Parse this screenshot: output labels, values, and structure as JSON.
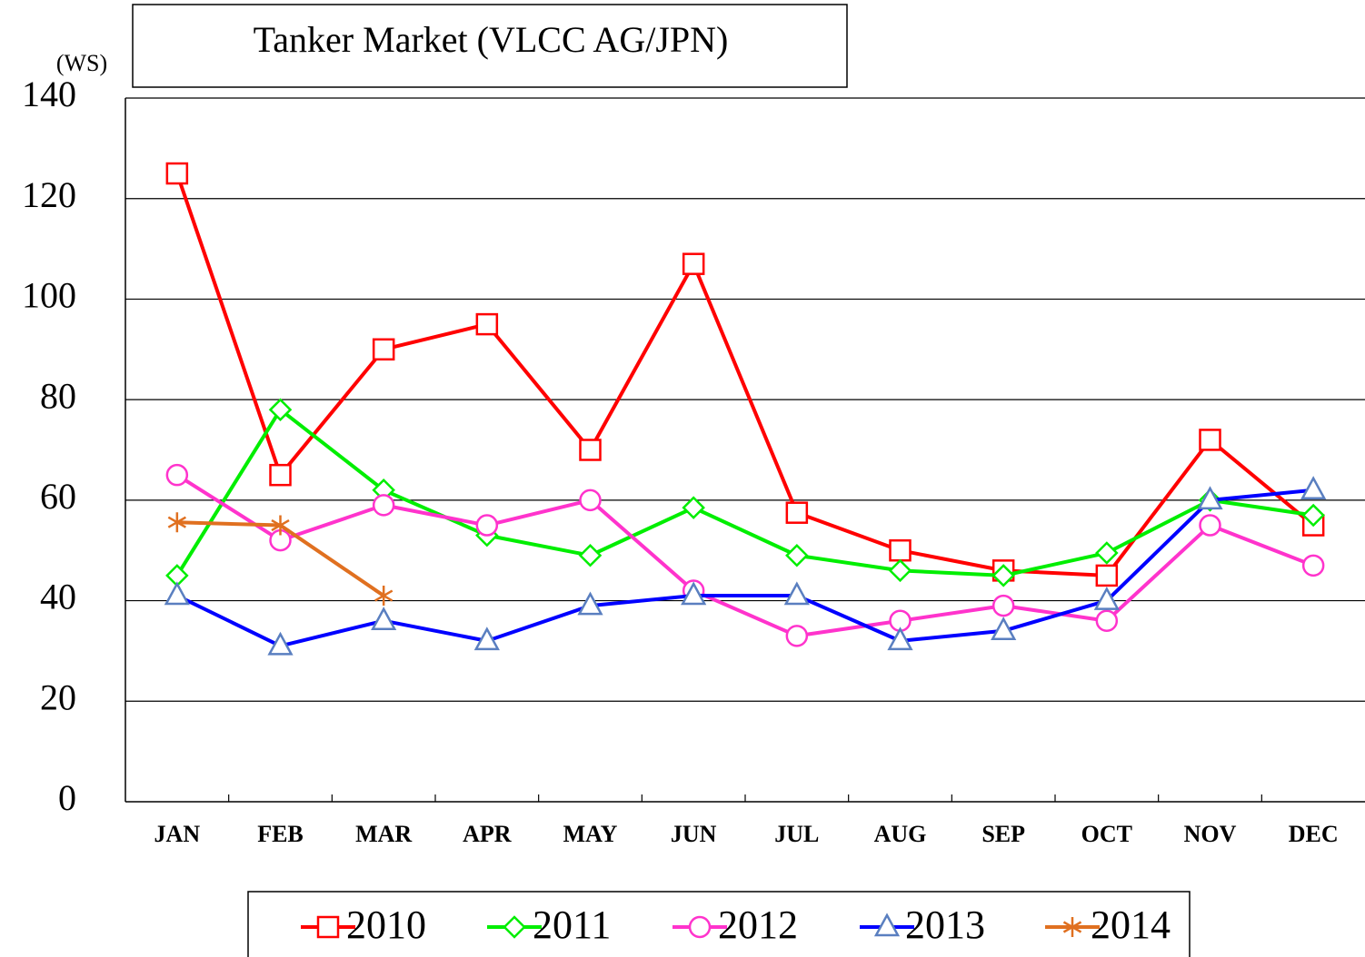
{
  "chart_data": {
    "type": "line",
    "title": "Tanker Market (VLCC AG/JPN)",
    "y_label": "(WS)",
    "categories": [
      "JAN",
      "FEB",
      "MAR",
      "APR",
      "MAY",
      "JUN",
      "JUL",
      "AUG",
      "SEP",
      "OCT",
      "NOV",
      "DEC"
    ],
    "series": [
      {
        "name": "2010",
        "color": "#ff0000",
        "marker": "square",
        "marker_color": "#ff0000",
        "values": [
          125,
          65,
          90,
          95,
          70,
          107,
          57.5,
          50,
          46,
          45,
          72,
          55
        ]
      },
      {
        "name": "2011",
        "color": "#00ee00",
        "marker": "diamond",
        "marker_color": "#00ee00",
        "values": [
          45,
          78,
          62,
          53,
          49,
          58.5,
          49,
          46,
          45,
          49.5,
          60,
          57
        ]
      },
      {
        "name": "2012",
        "color": "#ff33cc",
        "marker": "circle",
        "marker_color": "#ff33cc",
        "values": [
          65,
          52,
          59,
          55,
          60,
          42,
          33,
          36,
          39,
          36,
          55,
          47
        ]
      },
      {
        "name": "2013",
        "color": "#0000ff",
        "marker": "triangle",
        "marker_color": "#5a7fc0",
        "values": [
          41,
          31,
          36,
          32,
          39,
          41,
          41,
          32,
          34,
          40,
          60,
          62
        ]
      },
      {
        "name": "2014",
        "color": "#e07020",
        "marker": "asterisk",
        "marker_color": "#e07020",
        "values": [
          55.6,
          55,
          41,
          null,
          null,
          null,
          null,
          null,
          null,
          null,
          null,
          null
        ]
      }
    ],
    "ylim": [
      0,
      140
    ],
    "yticks": [
      0,
      20,
      40,
      60,
      80,
      100,
      120,
      140
    ],
    "grid": true,
    "legend": "bottom"
  }
}
